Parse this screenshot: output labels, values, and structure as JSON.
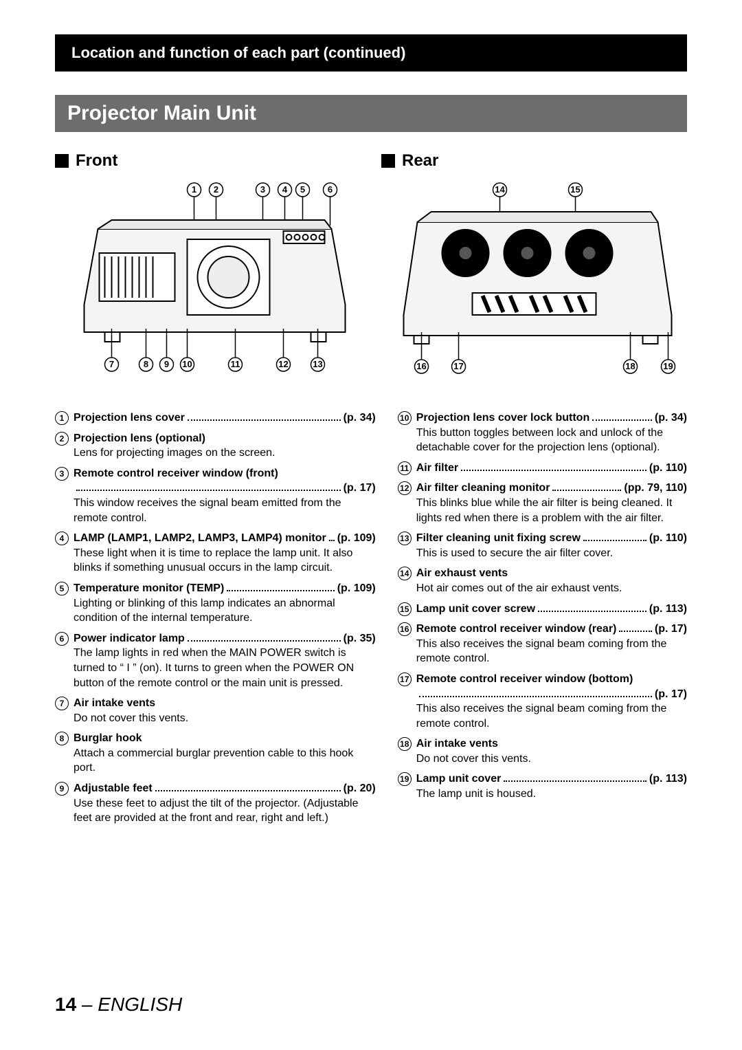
{
  "header": {
    "black_bar": "Location and function of each part (continued)"
  },
  "section": {
    "grey_bar": "Projector Main Unit"
  },
  "views": {
    "front": {
      "label": "Front",
      "callouts_top": [
        "1",
        "2",
        "3",
        "4",
        "5",
        "6"
      ],
      "callouts_bottom": [
        "7",
        "8",
        "9",
        "10",
        "11",
        "12",
        "13"
      ]
    },
    "rear": {
      "label": "Rear",
      "callouts_top": [
        "14",
        "15"
      ],
      "callouts_bottom": [
        "16",
        "17",
        "18",
        "19"
      ]
    }
  },
  "left_items": [
    {
      "num": "1",
      "title": "Projection lens cover",
      "page": "(p. 34)",
      "body": null
    },
    {
      "num": "2",
      "title": "Projection lens (optional)",
      "page": null,
      "body": "Lens for projecting images on the screen."
    },
    {
      "num": "3",
      "title": "Remote control receiver window (front)",
      "page": "(p. 17)",
      "page_newline": true,
      "body": "This window receives the signal beam emitted from the remote control."
    },
    {
      "num": "4",
      "title": "LAMP (LAMP1, LAMP2, LAMP3, LAMP4) monitor",
      "page": "(p. 109)",
      "body": "These light when it is time to replace the lamp unit. It also blinks if something unusual occurs in the lamp circuit."
    },
    {
      "num": "5",
      "title": "Temperature monitor (TEMP)",
      "page": "(p. 109)",
      "body": "Lighting or blinking of this lamp indicates an abnormal condition of the internal temperature."
    },
    {
      "num": "6",
      "title": "Power indicator lamp",
      "page": "(p. 35)",
      "body": "The lamp lights in red when the MAIN POWER switch is turned to “ I ” (on). It turns to green when the POWER ON button of the remote control or the main unit is pressed."
    },
    {
      "num": "7",
      "title": "Air intake vents",
      "page": null,
      "body": "Do not cover this vents."
    },
    {
      "num": "8",
      "title": "Burglar hook",
      "page": null,
      "body": "Attach a commercial burglar prevention cable to this hook port."
    },
    {
      "num": "9",
      "title": "Adjustable feet",
      "page": "(p. 20)",
      "body": "Use these feet to adjust the tilt of the projector. (Adjustable feet are provided at the front and rear, right and left.)"
    }
  ],
  "right_items": [
    {
      "num": "10",
      "title": "Projection lens cover lock button",
      "page": "(p. 34)",
      "body": "This button toggles between lock and unlock of the detachable cover for the projection lens (optional)."
    },
    {
      "num": "11",
      "title": "Air filter",
      "page": "(p. 110)",
      "body": null
    },
    {
      "num": "12",
      "title": "Air filter cleaning monitor",
      "page": "(pp. 79, 110)",
      "body": "This blinks blue while the air filter is being cleaned. It lights red when there is a problem with the air filter."
    },
    {
      "num": "13",
      "title": "Filter cleaning unit fixing screw",
      "page": "(p. 110)",
      "body": "This is used to secure the air filter cover."
    },
    {
      "num": "14",
      "title": "Air exhaust vents",
      "page": null,
      "body": "Hot air comes out of the air exhaust vents."
    },
    {
      "num": "15",
      "title": "Lamp unit cover screw",
      "page": "(p. 113)",
      "body": null
    },
    {
      "num": "16",
      "title": "Remote control receiver window (rear)",
      "page": "(p. 17)",
      "body": "This also receives the signal beam coming from the remote control."
    },
    {
      "num": "17",
      "title": "Remote control receiver window (bottom)",
      "page": "(p. 17)",
      "page_newline": true,
      "body": "This also receives the signal beam coming from the remote control."
    },
    {
      "num": "18",
      "title": "Air intake vents",
      "page": null,
      "body": "Do not cover this vents."
    },
    {
      "num": "19",
      "title": "Lamp unit cover",
      "page": "(p. 113)",
      "body": "The lamp unit is housed."
    }
  ],
  "footer": {
    "page_number": "14",
    "dash": " – ",
    "language": "ENGLISH"
  },
  "style": {
    "black_bar_bg": "#000000",
    "grey_bar_bg": "#6d6d6d",
    "text_color": "#000000",
    "body_fontsize": 16
  }
}
